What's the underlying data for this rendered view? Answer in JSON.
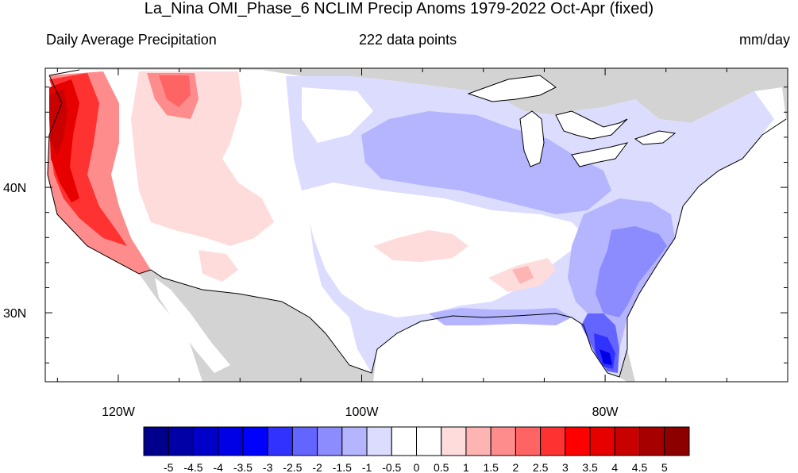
{
  "title": "La_Nina OMI_Phase_6 NCLIM Precip Anoms 1979-2022 Oct-Apr (fixed)",
  "subtitle_left": "Daily Average Precipitation",
  "subtitle_center": "222 data points",
  "subtitle_right": "mm/day",
  "map": {
    "region": "Contiguous United States",
    "projection": "cylindrical equidistant",
    "lon_range": [
      -126,
      -65
    ],
    "lat_range": [
      24.5,
      49.5
    ],
    "land_outside_data_color": "#d3d3d3",
    "ocean_color": "#ffffff",
    "lon_ticks": [
      {
        "value": -120,
        "label": "120W"
      },
      {
        "value": -100,
        "label": "100W"
      },
      {
        "value": -80,
        "label": "80W"
      }
    ],
    "lat_ticks": [
      {
        "value": 40,
        "label": "40N"
      },
      {
        "value": 30,
        "label": "30N"
      }
    ]
  },
  "colorbar": {
    "labels": [
      "-5",
      "-4.5",
      "-4",
      "-3.5",
      "-3",
      "-2.5",
      "-2",
      "-1.5",
      "-1",
      "-0.5",
      "0",
      "0.5",
      "1",
      "1.5",
      "2",
      "2.5",
      "3",
      "3.5",
      "4",
      "4.5",
      "5"
    ],
    "colors": [
      "#00008c",
      "#0000a6",
      "#0000c8",
      "#0000e6",
      "#0000ff",
      "#3232ff",
      "#6464ff",
      "#8c8cff",
      "#b4b4ff",
      "#dcdcff",
      "#ffffff",
      "#ffffff",
      "#ffdcdc",
      "#ffb4b4",
      "#ff8c8c",
      "#ff6464",
      "#ff3232",
      "#ff0000",
      "#e60000",
      "#c80000",
      "#a60000",
      "#8c0000"
    ]
  }
}
